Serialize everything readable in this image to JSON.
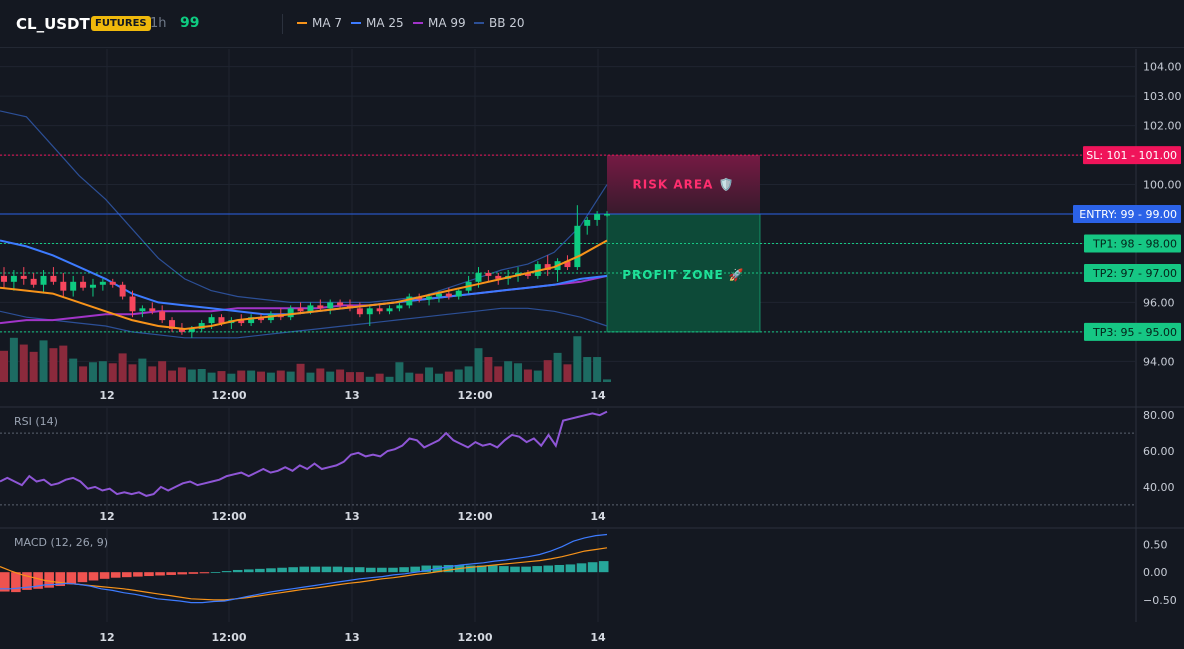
{
  "header": {
    "symbol": "CL_USDT",
    "badge": "FUTURES",
    "timeframe": "1h",
    "value": "99",
    "legend": [
      {
        "label": "MA 7",
        "color": "#f7931a"
      },
      {
        "label": "MA 25",
        "color": "#3d7bff"
      },
      {
        "label": "MA 99",
        "color": "#a134c9"
      },
      {
        "label": "BB 20",
        "color": "#2c4f96"
      }
    ]
  },
  "colors": {
    "up": "#0ecb81",
    "down": "#f6465d",
    "vol_up": "#1d6b62",
    "vol_down": "#8b2a3c",
    "risk": "#8b1d4a",
    "profit": "#0c5a42",
    "entry": "#2b62e8",
    "sl": "#f0145a",
    "tp": "#16c784"
  },
  "chart_data": [
    {
      "type": "candlestick",
      "x_ticks": [
        "12",
        "12:00",
        "13",
        "12:00",
        "14"
      ],
      "y_ticks": [
        "104.00",
        "103.00",
        "102.00",
        "101.00",
        "100.00",
        "99.00",
        "98.00",
        "97.00",
        "96.00",
        "95.00",
        "94.00"
      ],
      "ylim": [
        93.3,
        104.6
      ],
      "candles": [
        {
          "o": 96.9,
          "h": 97.2,
          "l": 96.5,
          "c": 96.7
        },
        {
          "o": 96.7,
          "h": 97.1,
          "l": 96.4,
          "c": 96.9
        },
        {
          "o": 96.9,
          "h": 97.2,
          "l": 96.6,
          "c": 96.8
        },
        {
          "o": 96.8,
          "h": 97.0,
          "l": 96.5,
          "c": 96.6
        },
        {
          "o": 96.6,
          "h": 97.1,
          "l": 96.3,
          "c": 96.9
        },
        {
          "o": 96.9,
          "h": 97.2,
          "l": 96.6,
          "c": 96.7
        },
        {
          "o": 96.7,
          "h": 97.0,
          "l": 96.2,
          "c": 96.4
        },
        {
          "o": 96.4,
          "h": 96.9,
          "l": 96.2,
          "c": 96.7
        },
        {
          "o": 96.7,
          "h": 96.9,
          "l": 96.4,
          "c": 96.5
        },
        {
          "o": 96.5,
          "h": 96.8,
          "l": 96.2,
          "c": 96.6
        },
        {
          "o": 96.6,
          "h": 96.8,
          "l": 96.4,
          "c": 96.7
        },
        {
          "o": 96.7,
          "h": 96.8,
          "l": 96.5,
          "c": 96.6
        },
        {
          "o": 96.6,
          "h": 96.7,
          "l": 96.1,
          "c": 96.2
        },
        {
          "o": 96.2,
          "h": 96.4,
          "l": 95.5,
          "c": 95.7
        },
        {
          "o": 95.7,
          "h": 95.9,
          "l": 95.5,
          "c": 95.8
        },
        {
          "o": 95.8,
          "h": 96.0,
          "l": 95.6,
          "c": 95.7
        },
        {
          "o": 95.7,
          "h": 95.9,
          "l": 95.3,
          "c": 95.4
        },
        {
          "o": 95.4,
          "h": 95.5,
          "l": 95.0,
          "c": 95.1
        },
        {
          "o": 95.1,
          "h": 95.3,
          "l": 94.9,
          "c": 95.0
        },
        {
          "o": 95.0,
          "h": 95.2,
          "l": 94.8,
          "c": 95.1
        },
        {
          "o": 95.1,
          "h": 95.4,
          "l": 95.0,
          "c": 95.3
        },
        {
          "o": 95.3,
          "h": 95.6,
          "l": 95.1,
          "c": 95.5
        },
        {
          "o": 95.5,
          "h": 95.6,
          "l": 95.2,
          "c": 95.3
        },
        {
          "o": 95.3,
          "h": 95.5,
          "l": 95.1,
          "c": 95.4
        },
        {
          "o": 95.4,
          "h": 95.6,
          "l": 95.2,
          "c": 95.3
        },
        {
          "o": 95.3,
          "h": 95.6,
          "l": 95.2,
          "c": 95.5
        },
        {
          "o": 95.5,
          "h": 95.6,
          "l": 95.3,
          "c": 95.4
        },
        {
          "o": 95.4,
          "h": 95.7,
          "l": 95.3,
          "c": 95.6
        },
        {
          "o": 95.6,
          "h": 95.8,
          "l": 95.4,
          "c": 95.5
        },
        {
          "o": 95.5,
          "h": 95.9,
          "l": 95.4,
          "c": 95.8
        },
        {
          "o": 95.8,
          "h": 96.0,
          "l": 95.6,
          "c": 95.7
        },
        {
          "o": 95.7,
          "h": 96.0,
          "l": 95.6,
          "c": 95.9
        },
        {
          "o": 95.9,
          "h": 96.1,
          "l": 95.7,
          "c": 95.8
        },
        {
          "o": 95.8,
          "h": 96.1,
          "l": 95.6,
          "c": 96.0
        },
        {
          "o": 96.0,
          "h": 96.1,
          "l": 95.8,
          "c": 95.9
        },
        {
          "o": 95.9,
          "h": 96.1,
          "l": 95.7,
          "c": 95.8
        },
        {
          "o": 95.8,
          "h": 96.0,
          "l": 95.5,
          "c": 95.6
        },
        {
          "o": 95.6,
          "h": 95.9,
          "l": 95.2,
          "c": 95.8
        },
        {
          "o": 95.8,
          "h": 95.9,
          "l": 95.6,
          "c": 95.7
        },
        {
          "o": 95.7,
          "h": 95.9,
          "l": 95.6,
          "c": 95.8
        },
        {
          "o": 95.8,
          "h": 96.0,
          "l": 95.7,
          "c": 95.9
        },
        {
          "o": 95.9,
          "h": 96.3,
          "l": 95.8,
          "c": 96.2
        },
        {
          "o": 96.2,
          "h": 96.3,
          "l": 96.0,
          "c": 96.1
        },
        {
          "o": 96.1,
          "h": 96.3,
          "l": 95.9,
          "c": 96.2
        },
        {
          "o": 96.2,
          "h": 96.4,
          "l": 96.0,
          "c": 96.3
        },
        {
          "o": 96.3,
          "h": 96.5,
          "l": 96.1,
          "c": 96.2
        },
        {
          "o": 96.2,
          "h": 96.5,
          "l": 96.1,
          "c": 96.4
        },
        {
          "o": 96.4,
          "h": 96.9,
          "l": 96.3,
          "c": 96.7
        },
        {
          "o": 96.7,
          "h": 97.2,
          "l": 96.5,
          "c": 97.0
        },
        {
          "o": 97.0,
          "h": 97.1,
          "l": 96.7,
          "c": 96.9
        },
        {
          "o": 96.9,
          "h": 97.0,
          "l": 96.6,
          "c": 96.8
        },
        {
          "o": 96.8,
          "h": 97.1,
          "l": 96.6,
          "c": 96.9
        },
        {
          "o": 96.9,
          "h": 97.2,
          "l": 96.7,
          "c": 97.0
        },
        {
          "o": 97.0,
          "h": 97.1,
          "l": 96.8,
          "c": 96.9
        },
        {
          "o": 96.9,
          "h": 97.4,
          "l": 96.8,
          "c": 97.3
        },
        {
          "o": 97.3,
          "h": 97.6,
          "l": 96.9,
          "c": 97.1
        },
        {
          "o": 97.1,
          "h": 97.5,
          "l": 96.7,
          "c": 97.4
        },
        {
          "o": 97.4,
          "h": 97.6,
          "l": 97.1,
          "c": 97.2
        },
        {
          "o": 97.2,
          "h": 99.3,
          "l": 97.1,
          "c": 98.6
        },
        {
          "o": 98.6,
          "h": 98.9,
          "l": 98.3,
          "c": 98.8
        },
        {
          "o": 98.8,
          "h": 99.1,
          "l": 98.6,
          "c": 99.0
        },
        {
          "o": 99.0,
          "h": 99.1,
          "l": 98.9,
          "c": 99.0
        }
      ],
      "volume": [
        60,
        85,
        72,
        58,
        80,
        65,
        70,
        45,
        30,
        38,
        40,
        36,
        55,
        34,
        45,
        30,
        40,
        22,
        28,
        24,
        25,
        18,
        21,
        16,
        22,
        22,
        20,
        18,
        22,
        20,
        35,
        18,
        26,
        20,
        24,
        19,
        19,
        10,
        16,
        10,
        38,
        18,
        16,
        28,
        16,
        20,
        24,
        30,
        65,
        48,
        30,
        40,
        36,
        24,
        22,
        42,
        56,
        34,
        88,
        48,
        48,
        5
      ],
      "ma7": [
        96.5,
        96.4,
        96.3,
        96.0,
        95.7,
        95.4,
        95.2,
        95.1,
        95.2,
        95.4,
        95.5,
        95.6,
        95.7,
        95.8,
        95.9,
        96.0,
        96.2,
        96.4,
        96.6,
        96.8,
        97.0,
        97.2,
        97.6,
        98.1
      ],
      "ma25": [
        98.1,
        97.9,
        97.6,
        97.2,
        96.8,
        96.3,
        96.0,
        95.9,
        95.8,
        95.7,
        95.6,
        95.6,
        95.7,
        95.8,
        95.9,
        96.0,
        96.1,
        96.2,
        96.3,
        96.4,
        96.5,
        96.6,
        96.8,
        96.9
      ],
      "ma99": [
        95.3,
        95.4,
        95.4,
        95.5,
        95.6,
        95.6,
        95.7,
        95.7,
        95.7,
        95.8,
        95.8,
        95.8,
        95.8,
        95.9,
        95.9,
        96.0,
        96.1,
        96.2,
        96.3,
        96.4,
        96.5,
        96.6,
        96.7,
        96.9
      ],
      "bb_upper": [
        102.5,
        102.3,
        101.3,
        100.3,
        99.5,
        98.5,
        97.5,
        96.8,
        96.4,
        96.2,
        96.1,
        96.0,
        96.0,
        96.0,
        96.0,
        96.1,
        96.2,
        96.5,
        96.8,
        97.1,
        97.3,
        97.7,
        98.6,
        100.0
      ],
      "bb_lower": [
        95.7,
        95.5,
        95.4,
        95.3,
        95.2,
        95.0,
        94.9,
        94.8,
        94.8,
        94.8,
        94.9,
        95.0,
        95.1,
        95.2,
        95.3,
        95.4,
        95.5,
        95.6,
        95.7,
        95.8,
        95.8,
        95.7,
        95.5,
        95.2
      ],
      "levels": [
        {
          "label": "SL: 101",
          "value": 101.0,
          "value_label": "101.00",
          "kind": "sl"
        },
        {
          "label": "ENTRY: 99",
          "value": 99.0,
          "value_label": "99.00",
          "kind": "entry"
        },
        {
          "label": "TP1: 98",
          "value": 98.0,
          "value_label": "98.00",
          "kind": "tp"
        },
        {
          "label": "TP2: 97",
          "value": 97.0,
          "value_label": "97.00",
          "kind": "tp"
        },
        {
          "label": "TP3: 95",
          "value": 95.0,
          "value_label": "95.00",
          "kind": "tp"
        }
      ],
      "zones": [
        {
          "label": "RISK AREA 🛡️",
          "from": 99.0,
          "to": 101.0,
          "kind": "risk"
        },
        {
          "label": "PROFIT ZONE 🚀",
          "from": 95.0,
          "to": 99.0,
          "kind": "profit"
        }
      ]
    },
    {
      "type": "line",
      "title": "RSI (14)",
      "x_ticks": [
        "12",
        "12:00",
        "13",
        "12:00",
        "14"
      ],
      "y_ticks": [
        "80.00",
        "60.00",
        "40.00"
      ],
      "ylim": [
        26,
        84
      ],
      "guides": [
        70,
        30
      ],
      "values": [
        43,
        45,
        43,
        41,
        46,
        43,
        44,
        41,
        42,
        44,
        45,
        43,
        39,
        40,
        38,
        39,
        36,
        37,
        36,
        37,
        35,
        36,
        40,
        38,
        40,
        42,
        43,
        41,
        42,
        43,
        44,
        46,
        47,
        48,
        46,
        48,
        50,
        48,
        49,
        51,
        49,
        52,
        50,
        53,
        50,
        51,
        52,
        54,
        58,
        59,
        57,
        58,
        57,
        60,
        61,
        63,
        67,
        66,
        62,
        64,
        66,
        70,
        66,
        64,
        62,
        65,
        63,
        64,
        62,
        66,
        69,
        68,
        65,
        67,
        63,
        69,
        63,
        77,
        78,
        79,
        80,
        81,
        80,
        82
      ]
    },
    {
      "type": "bar",
      "title": "MACD (12, 26, 9)",
      "x_ticks": [
        "12",
        "12:00",
        "13",
        "12:00",
        "14"
      ],
      "y_ticks": [
        "0.50",
        "0.00",
        "−0.50"
      ],
      "ylim": [
        -0.9,
        0.78
      ],
      "histogram": [
        -0.35,
        -0.36,
        -0.32,
        -0.3,
        -0.28,
        -0.25,
        -0.22,
        -0.18,
        -0.15,
        -0.12,
        -0.1,
        -0.09,
        -0.08,
        -0.07,
        -0.06,
        -0.05,
        -0.04,
        -0.03,
        -0.02,
        0.0,
        0.02,
        0.04,
        0.05,
        0.06,
        0.07,
        0.08,
        0.09,
        0.1,
        0.1,
        0.1,
        0.1,
        0.09,
        0.09,
        0.08,
        0.08,
        0.08,
        0.09,
        0.1,
        0.12,
        0.12,
        0.13,
        0.13,
        0.12,
        0.12,
        0.12,
        0.11,
        0.1,
        0.1,
        0.11,
        0.12,
        0.13,
        0.14,
        0.16,
        0.18,
        0.2
      ],
      "macd": [
        -0.3,
        -0.3,
        -0.28,
        -0.26,
        -0.23,
        -0.22,
        -0.2,
        -0.22,
        -0.25,
        -0.3,
        -0.33,
        -0.37,
        -0.4,
        -0.44,
        -0.48,
        -0.5,
        -0.52,
        -0.55,
        -0.55,
        -0.53,
        -0.52,
        -0.48,
        -0.44,
        -0.4,
        -0.36,
        -0.33,
        -0.3,
        -0.27,
        -0.24,
        -0.21,
        -0.18,
        -0.15,
        -0.12,
        -0.1,
        -0.08,
        -0.05,
        -0.03,
        0.0,
        0.03,
        0.07,
        0.1,
        0.13,
        0.15,
        0.17,
        0.2,
        0.22,
        0.25,
        0.28,
        0.32,
        0.38,
        0.46,
        0.56,
        0.62,
        0.66,
        0.68
      ],
      "signal": [
        0.1,
        0.02,
        -0.05,
        -0.1,
        -0.15,
        -0.18,
        -0.2,
        -0.22,
        -0.24,
        -0.26,
        -0.28,
        -0.3,
        -0.33,
        -0.36,
        -0.39,
        -0.42,
        -0.45,
        -0.48,
        -0.49,
        -0.5,
        -0.5,
        -0.48,
        -0.46,
        -0.43,
        -0.4,
        -0.37,
        -0.34,
        -0.31,
        -0.29,
        -0.26,
        -0.23,
        -0.2,
        -0.18,
        -0.15,
        -0.12,
        -0.1,
        -0.07,
        -0.04,
        -0.02,
        0.01,
        0.04,
        0.07,
        0.09,
        0.11,
        0.13,
        0.15,
        0.17,
        0.19,
        0.21,
        0.24,
        0.28,
        0.33,
        0.38,
        0.41,
        0.44
      ]
    }
  ]
}
